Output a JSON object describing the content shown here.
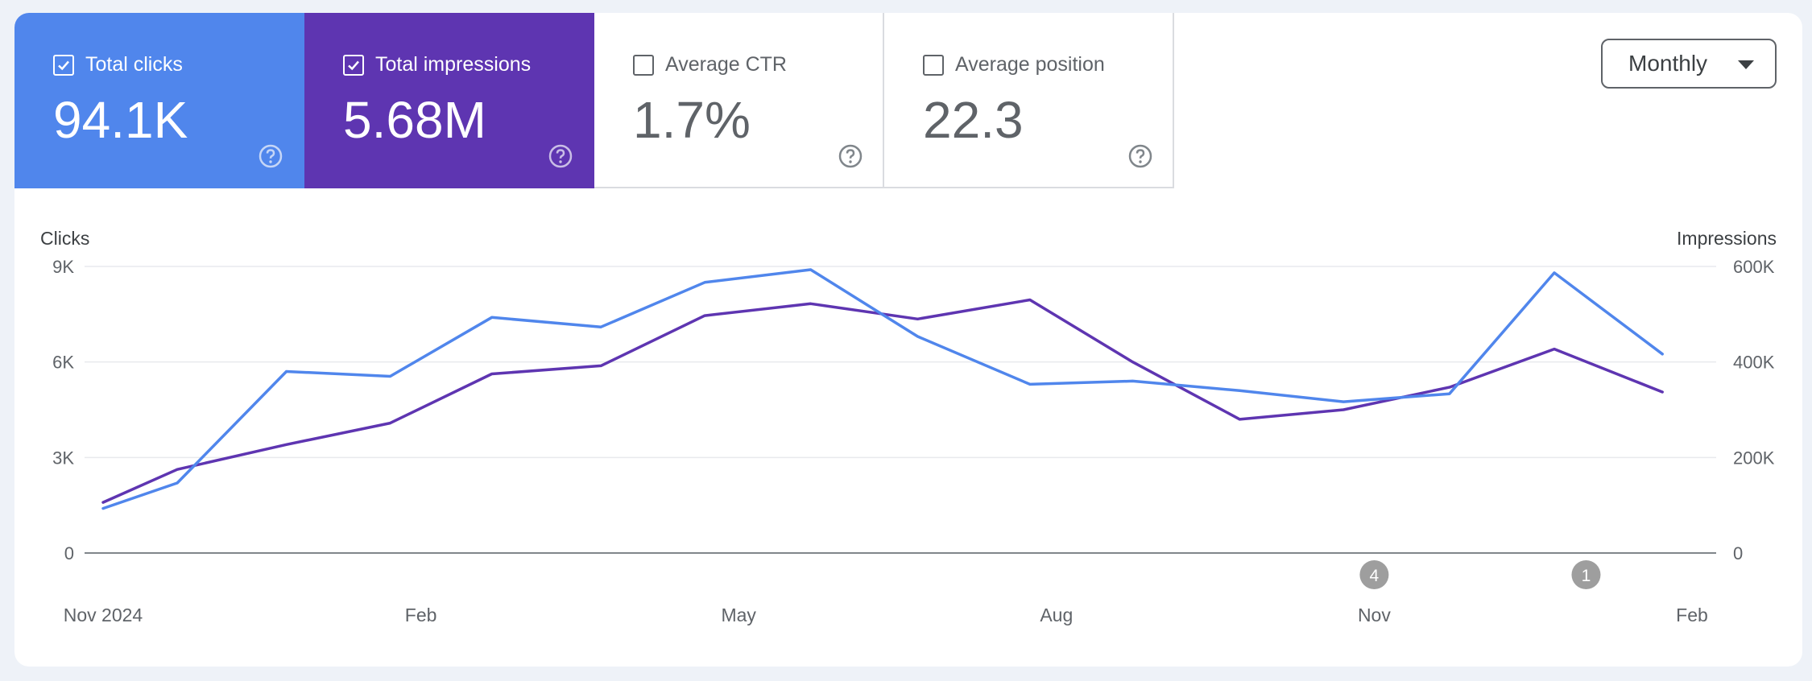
{
  "metrics": [
    {
      "label": "Total clicks",
      "value": "94.1K",
      "checked": true,
      "color": "#5086ec"
    },
    {
      "label": "Total impressions",
      "value": "5.68M",
      "checked": true,
      "color": "#5e35b1"
    },
    {
      "label": "Average CTR",
      "value": "1.7%",
      "checked": false
    },
    {
      "label": "Average position",
      "value": "22.3",
      "checked": false
    }
  ],
  "period_select": {
    "selected": "Monthly"
  },
  "icons": {
    "help": "help-circle-icon",
    "check": "check-icon",
    "caret": "caret-down-icon"
  },
  "chart_data": {
    "type": "line",
    "title": "",
    "ylabel_left": "Clicks",
    "ylabel_right": "Impressions",
    "x": [
      "Nov 2024",
      "Dec 2024",
      "Jan 2025",
      "Feb 2025",
      "Mar 2025",
      "Apr 2025",
      "May 2025",
      "Jun 2025",
      "Jul 2025",
      "Aug 2025",
      "Sep 2025",
      "Oct 2025",
      "Nov 2025",
      "Dec 2025",
      "Jan 2026",
      "Feb 2026"
    ],
    "xticks": [
      {
        "index": 0,
        "label": "Nov 2024"
      },
      {
        "index": 3,
        "label": "Feb"
      },
      {
        "index": 6,
        "label": "May"
      },
      {
        "index": 9,
        "label": "Aug"
      },
      {
        "index": 12,
        "label": "Nov"
      },
      {
        "index": 15,
        "label": "Feb"
      }
    ],
    "x_index": [
      0,
      0.7,
      1.73,
      2.71,
      3.67,
      4.7,
      5.68,
      6.68,
      7.69,
      8.75,
      9.72,
      10.73,
      11.71,
      12.71,
      13.7,
      14.72
    ],
    "yticks_left": [
      "9K",
      "6K",
      "3K",
      "0"
    ],
    "yticks_right": [
      "600K",
      "400K",
      "200K",
      "0"
    ],
    "ylim_left": [
      0,
      9000
    ],
    "ylim_right": [
      0,
      600000
    ],
    "series": [
      {
        "name": "Total clicks",
        "axis": "left",
        "color": "#5086ec",
        "values": [
          1400,
          2200,
          5700,
          5550,
          7400,
          7100,
          8500,
          8900,
          6800,
          5300,
          5400,
          5100,
          4750,
          5000,
          8800,
          6250
        ]
      },
      {
        "name": "Total impressions",
        "axis": "right",
        "color": "#5e35b1",
        "values": [
          106000,
          175000,
          227000,
          272000,
          375000,
          392000,
          497000,
          522000,
          490000,
          530000,
          400000,
          280000,
          300000,
          347000,
          427000,
          337000
        ]
      }
    ],
    "annotations": [
      {
        "x_index": 12,
        "label": "4"
      },
      {
        "x_index": 14,
        "label": "1"
      }
    ]
  }
}
